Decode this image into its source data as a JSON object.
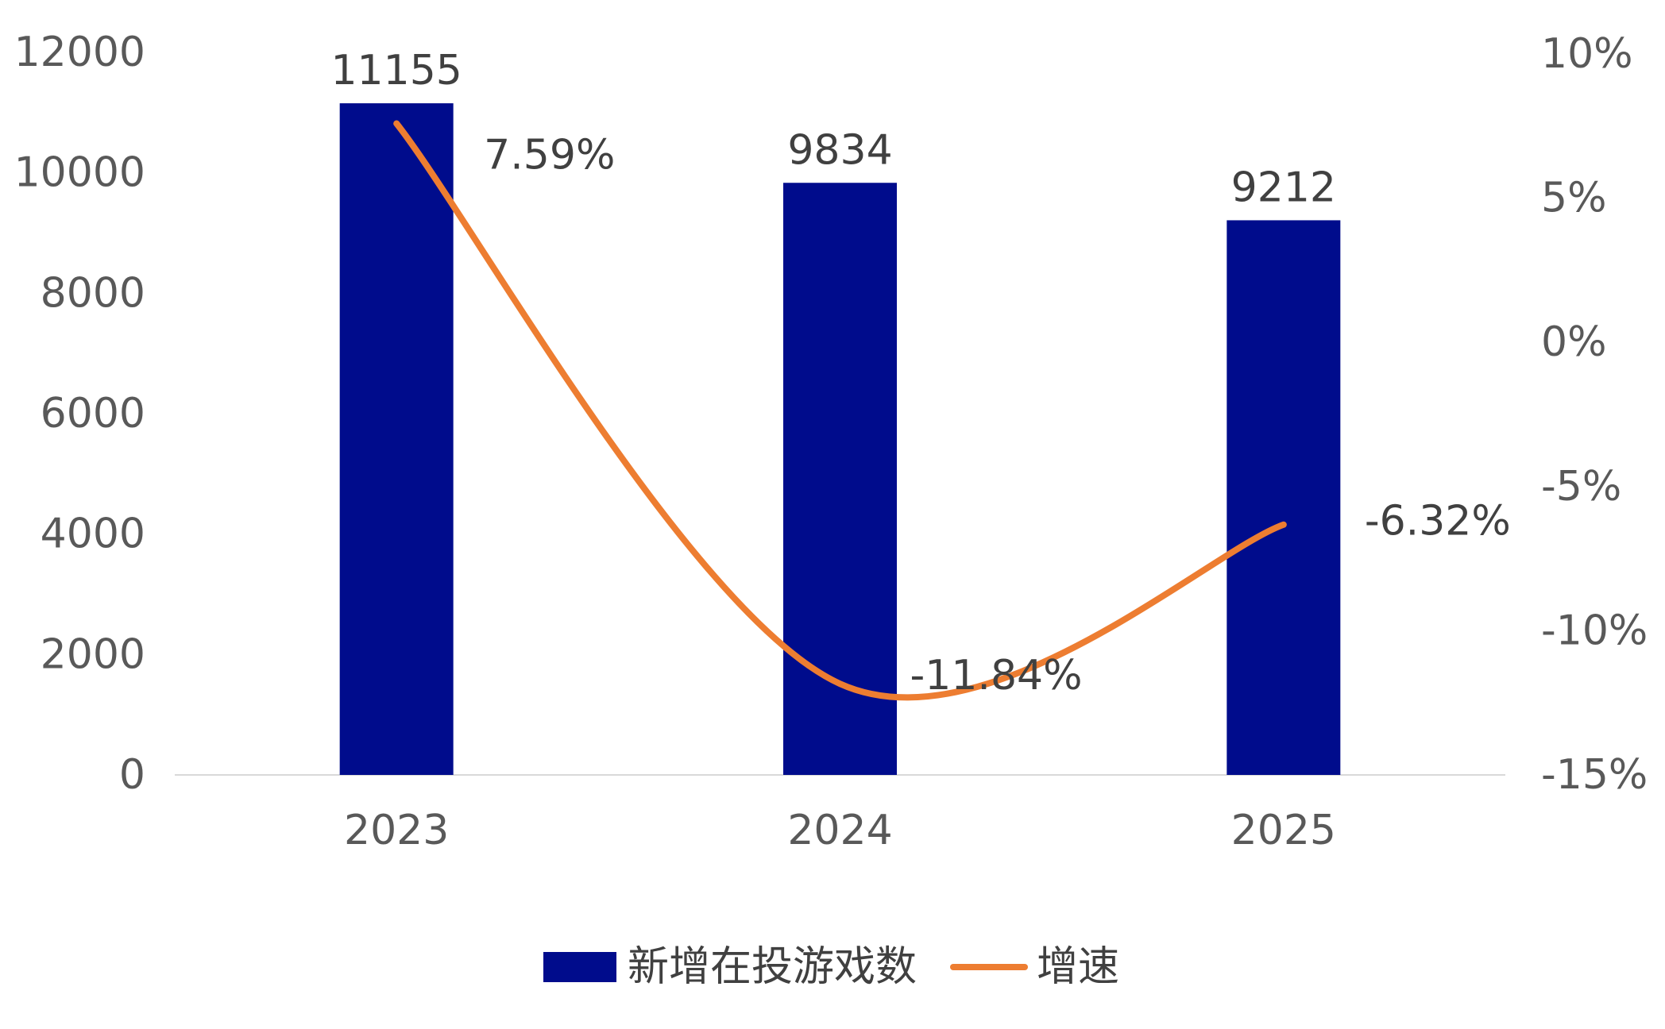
{
  "chart_data": {
    "type": "bar",
    "categories": [
      "2023",
      "2024",
      "2025"
    ],
    "series": [
      {
        "name": "新增在投游戏数",
        "type": "bar",
        "axis": "left",
        "values": [
          11155,
          9834,
          9212
        ],
        "labels": [
          "11155",
          "9834",
          "9212"
        ]
      },
      {
        "name": "增速",
        "type": "line",
        "axis": "right",
        "values": [
          7.59,
          -11.84,
          -6.32
        ],
        "labels": [
          "7.59%",
          "-11.84%",
          "-6.32%"
        ]
      }
    ],
    "y_left": {
      "min": 0,
      "max": 12000,
      "ticks": [
        "0",
        "2000",
        "4000",
        "6000",
        "8000",
        "10000",
        "12000"
      ]
    },
    "y_right": {
      "min": -15,
      "max": 10,
      "ticks": [
        "-15%",
        "-10%",
        "-5%",
        "0%",
        "5%",
        "10%"
      ]
    },
    "grid": false,
    "legend": "bottom",
    "colors": {
      "bar": "#000C8C",
      "line": "#ED7D31",
      "axis": "#D9D9D9",
      "tick": "#595959",
      "label": "#404040"
    }
  }
}
